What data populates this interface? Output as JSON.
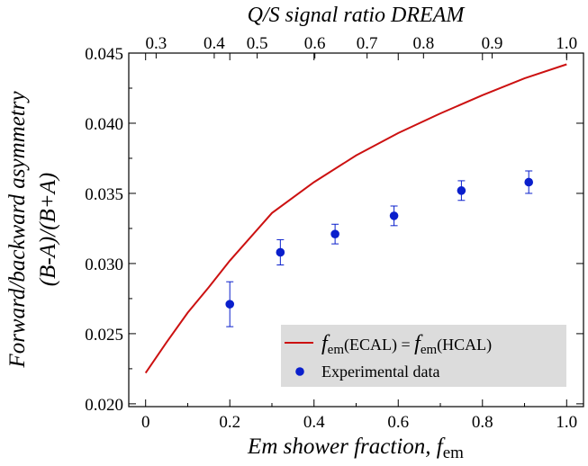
{
  "chart_data": {
    "type": "scatter",
    "xlabel": "Em shower fraction,",
    "xlabel_symbol": "f",
    "xlabel_subscript": "em",
    "ylabel_line1": "Forward/backward asymmetry",
    "ylabel_line2": "(B-A)/(B+A)",
    "top_axis_label": "Q/S signal ratio DREAM",
    "xlim": [
      -0.04,
      1.04
    ],
    "ylim": [
      0.0198,
      0.045
    ],
    "x_ticks": [
      "0",
      "0.2",
      "0.4",
      "0.6",
      "0.8",
      "1.0"
    ],
    "x_tick_values": [
      0,
      0.2,
      0.4,
      0.6,
      0.8,
      1.0
    ],
    "y_ticks": [
      "0.020",
      "0.025",
      "0.030",
      "0.035",
      "0.040",
      "0.045"
    ],
    "y_tick_values": [
      0.02,
      0.025,
      0.03,
      0.035,
      0.04,
      0.045
    ],
    "top_ticks": [
      "0.3",
      "0.4",
      "0.5",
      "0.6",
      "0.7",
      "0.8",
      "0.9",
      "1.0"
    ],
    "top_tick_fem_values": [
      0.025,
      0.163,
      0.265,
      0.402,
      0.526,
      0.66,
      0.823,
      1.0
    ],
    "grid": false,
    "legend_position": "bottom-right",
    "series": [
      {
        "name": "fem(ECAL) = fem(HCAL)",
        "legend_parts": [
          "f",
          "em",
          "(ECAL) = ",
          "f",
          "em",
          "(HCAL)"
        ],
        "style": "line",
        "color": "#cc1111",
        "x": [
          0.0,
          0.05,
          0.1,
          0.15,
          0.2,
          0.3,
          0.4,
          0.5,
          0.6,
          0.7,
          0.8,
          0.9,
          1.0
        ],
        "y": [
          0.0222,
          0.0244,
          0.0265,
          0.0283,
          0.0302,
          0.0336,
          0.0358,
          0.0377,
          0.0393,
          0.0407,
          0.042,
          0.0432,
          0.0442
        ]
      },
      {
        "name": "Experimental data",
        "style": "markers",
        "color": "#0a1fcc",
        "x": [
          0.2,
          0.32,
          0.45,
          0.59,
          0.75,
          0.91
        ],
        "y": [
          0.0271,
          0.0308,
          0.0321,
          0.0334,
          0.0352,
          0.0358
        ],
        "yerr": [
          0.0016,
          0.0009,
          0.0007,
          0.0007,
          0.0007,
          0.0008
        ]
      }
    ]
  }
}
